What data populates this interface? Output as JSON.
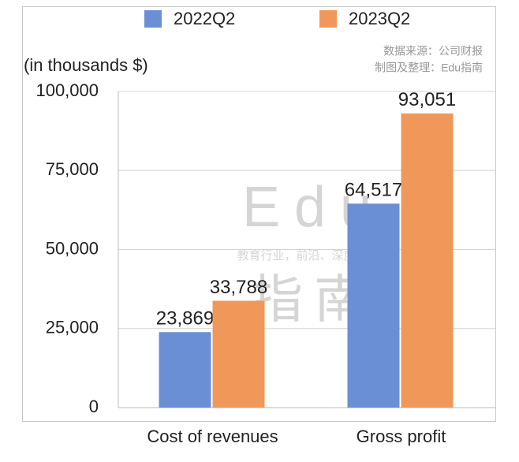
{
  "chart_data": {
    "type": "bar",
    "y_label": "(in thousands $)",
    "source": "数据来源：公司财报",
    "credit": "制图及整理：Edu指南",
    "watermark": [
      "Edu",
      "教育行业，前沿、深度、独家",
      "指南"
    ],
    "categories": [
      "Cost of revenues",
      "Gross profit"
    ],
    "series": [
      {
        "name": "2022Q2",
        "color": "#6a8fd4",
        "values": [
          23869,
          64517
        ],
        "value_labels": [
          "23,869",
          "64,517"
        ]
      },
      {
        "name": "2023Q2",
        "color": "#f0985a",
        "values": [
          33788,
          93051
        ],
        "value_labels": [
          "33,788",
          "93,051"
        ]
      }
    ],
    "ylim": [
      0,
      100000
    ],
    "yticks": [
      0,
      {
        "value": 25000,
        "label": "25,000"
      },
      {
        "value": 50000,
        "label": "50,000"
      },
      {
        "value": 75000,
        "label": "75,000"
      },
      {
        "value": 100000,
        "label": "100,000"
      }
    ],
    "grid": true
  }
}
